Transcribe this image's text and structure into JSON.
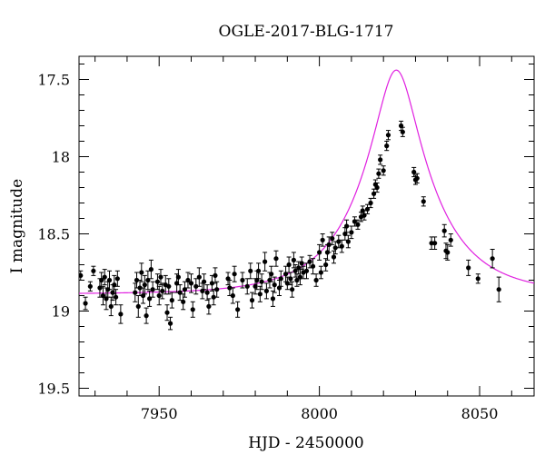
{
  "chart_data": {
    "type": "scatter",
    "title": "OGLE-2017-BLG-1717",
    "xlabel": "HJD - 2450000",
    "ylabel": "I magnitude",
    "xlim": [
      7925,
      8067
    ],
    "ylim": [
      19.55,
      17.35
    ],
    "y_inverted": true,
    "grid": false,
    "x_ticks": [
      7950,
      8000,
      8050
    ],
    "x_tick_labels": [
      "7950",
      "8000",
      "8050"
    ],
    "y_ticks": [
      17.5,
      18,
      18.5,
      19,
      19.5
    ],
    "y_tick_labels": [
      "17.5",
      "18",
      "18.5",
      "19",
      "19.5"
    ],
    "colors": {
      "points": "#000000",
      "model": "#e020e0"
    },
    "series": [
      {
        "type": "scatter",
        "x": [
          7925.5,
          7927.0,
          7928.5,
          7929.5,
          7931.5,
          7932.0,
          7932.5,
          7933.0,
          7933.5,
          7934.0,
          7934.5,
          7935.0,
          7935.5,
          7936.0,
          7936.5,
          7937.0,
          7938.0,
          7942.5,
          7943.0,
          7943.5,
          7944.0,
          7944.5,
          7945.0,
          7945.5,
          7946.0,
          7946.5,
          7947.0,
          7947.5,
          7948.0,
          7949.5,
          7950.0,
          7950.5,
          7951.0,
          7952.0,
          7952.5,
          7953.0,
          7953.5,
          7954.0,
          7955.5,
          7956.0,
          7956.5,
          7957.5,
          7958.0,
          7959.0,
          7960.0,
          7960.5,
          7961.5,
          7962.5,
          7963.5,
          7964.0,
          7965.0,
          7965.5,
          7966.5,
          7967.0,
          7967.5,
          7968.0,
          7971.5,
          7972.0,
          7973.0,
          7973.5,
          7974.5,
          7976.0,
          7977.5,
          7978.5,
          7979.0,
          7980.0,
          7980.5,
          7981.0,
          7981.5,
          7982.0,
          7983.0,
          7983.5,
          7984.5,
          7985.0,
          7985.5,
          7986.0,
          7986.5,
          7987.5,
          7988.0,
          7989.5,
          7990.0,
          7990.5,
          7991.0,
          7991.5,
          7992.0,
          7992.5,
          7993.0,
          7993.5,
          7994.0,
          7994.5,
          7995.0,
          7996.0,
          7997.0,
          7998.0,
          7999.0,
          8000.0,
          8000.5,
          8001.0,
          8002.0,
          8002.5,
          8003.0,
          8004.0,
          8004.5,
          8005.0,
          8006.0,
          8007.0,
          8008.0,
          8008.5,
          8009.0,
          8010.0,
          8011.0,
          8012.0,
          8013.0,
          8013.5,
          8014.0,
          8015.0,
          8016.0,
          8017.0,
          8017.5,
          8018.0,
          8018.5,
          8019.0,
          8020.0,
          8021.0,
          8021.5,
          8025.5,
          8026.0,
          8029.5,
          8030.0,
          8030.5,
          8032.5,
          8035.0,
          8036.0,
          8039.0,
          8039.5,
          8040.0,
          8041.0,
          8046.5,
          8049.5,
          8054.0,
          8056.0
        ],
        "y": [
          18.77,
          18.95,
          18.84,
          18.74,
          18.85,
          18.8,
          18.9,
          18.78,
          18.92,
          18.86,
          18.8,
          18.97,
          18.88,
          18.83,
          18.91,
          18.79,
          19.02,
          18.88,
          18.8,
          18.97,
          18.85,
          18.75,
          18.9,
          18.83,
          19.03,
          18.8,
          18.92,
          18.73,
          18.86,
          18.81,
          18.9,
          18.78,
          18.87,
          18.83,
          19.01,
          18.84,
          19.08,
          18.93,
          18.82,
          18.78,
          18.88,
          18.94,
          18.86,
          18.8,
          18.82,
          18.99,
          18.84,
          18.78,
          18.87,
          18.81,
          18.88,
          18.97,
          18.82,
          18.91,
          18.77,
          18.86,
          18.79,
          18.85,
          18.9,
          18.76,
          18.99,
          18.8,
          18.84,
          18.74,
          18.93,
          18.84,
          18.8,
          18.74,
          18.89,
          18.81,
          18.68,
          18.87,
          18.8,
          18.76,
          18.92,
          18.83,
          18.66,
          18.85,
          18.79,
          18.76,
          18.82,
          18.7,
          18.79,
          18.86,
          18.67,
          18.74,
          18.8,
          18.72,
          18.78,
          18.69,
          18.75,
          18.74,
          18.68,
          18.71,
          18.8,
          18.62,
          18.75,
          18.54,
          18.7,
          18.62,
          18.57,
          18.53,
          18.65,
          18.59,
          18.55,
          18.58,
          18.5,
          18.45,
          18.55,
          18.49,
          18.42,
          18.44,
          18.39,
          18.35,
          18.38,
          18.34,
          18.3,
          18.24,
          18.18,
          18.2,
          18.11,
          18.02,
          18.09,
          17.93,
          17.86,
          17.8,
          17.84,
          18.1,
          18.15,
          18.14,
          18.29,
          18.56,
          18.56,
          18.48,
          18.61,
          18.62,
          18.54,
          18.72,
          18.79,
          18.66,
          18.86
        ],
        "errors": [
          0.03,
          0.04,
          0.03,
          0.03,
          0.06,
          0.05,
          0.06,
          0.05,
          0.07,
          0.05,
          0.06,
          0.06,
          0.05,
          0.06,
          0.05,
          0.05,
          0.06,
          0.06,
          0.05,
          0.07,
          0.05,
          0.06,
          0.05,
          0.06,
          0.05,
          0.06,
          0.05,
          0.06,
          0.05,
          0.05,
          0.06,
          0.05,
          0.05,
          0.06,
          0.05,
          0.05,
          0.04,
          0.05,
          0.06,
          0.05,
          0.05,
          0.05,
          0.05,
          0.05,
          0.06,
          0.05,
          0.05,
          0.06,
          0.05,
          0.05,
          0.05,
          0.05,
          0.05,
          0.05,
          0.05,
          0.05,
          0.04,
          0.05,
          0.05,
          0.05,
          0.05,
          0.05,
          0.05,
          0.05,
          0.05,
          0.05,
          0.06,
          0.05,
          0.05,
          0.05,
          0.06,
          0.05,
          0.05,
          0.05,
          0.05,
          0.05,
          0.05,
          0.05,
          0.05,
          0.05,
          0.04,
          0.05,
          0.04,
          0.05,
          0.05,
          0.04,
          0.04,
          0.04,
          0.05,
          0.04,
          0.04,
          0.05,
          0.04,
          0.05,
          0.04,
          0.05,
          0.04,
          0.04,
          0.04,
          0.05,
          0.05,
          0.04,
          0.04,
          0.04,
          0.04,
          0.04,
          0.04,
          0.04,
          0.04,
          0.04,
          0.03,
          0.03,
          0.03,
          0.03,
          0.03,
          0.03,
          0.03,
          0.03,
          0.03,
          0.03,
          0.03,
          0.03,
          0.03,
          0.03,
          0.03,
          0.03,
          0.03,
          0.03,
          0.03,
          0.03,
          0.03,
          0.04,
          0.04,
          0.04,
          0.05,
          0.05,
          0.04,
          0.05,
          0.03,
          0.06,
          0.08
        ]
      },
      {
        "type": "line",
        "model": {
          "t0": 8024.0,
          "u0": 0.27,
          "tE": 22.5,
          "baseline_mag": 18.89
        }
      }
    ]
  }
}
